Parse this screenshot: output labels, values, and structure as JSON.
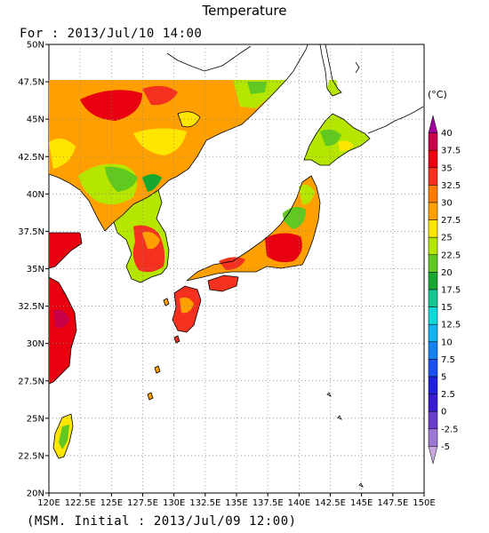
{
  "title": "Temperature",
  "subtitle": "For : 2013/Jul/10 14:00",
  "footer": "(MSM. Initial : 2013/Jul/09 12:00)",
  "map": {
    "lon_range": [
      120,
      150
    ],
    "lat_range": [
      20,
      50
    ],
    "lat_labels": [
      "20N",
      "22.5N",
      "25N",
      "27.5N",
      "30N",
      "32.5N",
      "35N",
      "37.5N",
      "40N",
      "42.5N",
      "45N",
      "47.5N",
      "50N"
    ],
    "lon_labels": [
      "120E",
      "122.5E",
      "125E",
      "127.5E",
      "130E",
      "132.5E",
      "135E",
      "137.5E",
      "140E",
      "142.5E",
      "145E",
      "147.5E",
      "150E"
    ],
    "grid": "dotted"
  },
  "colorbar": {
    "unit": "(°C)",
    "labels": [
      "40",
      "37.5",
      "35",
      "32.5",
      "30",
      "27.5",
      "25",
      "22.5",
      "20",
      "17.5",
      "15",
      "12.5",
      "10",
      "7.5",
      "5",
      "2.5",
      "0",
      "-2.5",
      "-5"
    ],
    "colors": [
      "#a0009c",
      "#c8004a",
      "#e80010",
      "#f4301e",
      "#ff7a00",
      "#ffa000",
      "#ffe600",
      "#b4e600",
      "#60c81e",
      "#18a830",
      "#10c890",
      "#10d8d8",
      "#10b4f0",
      "#1482f0",
      "#1a50f0",
      "#2020e0",
      "#3a1ad2",
      "#6a3ccc",
      "#9a78d4",
      "#c8a8e0"
    ]
  }
}
